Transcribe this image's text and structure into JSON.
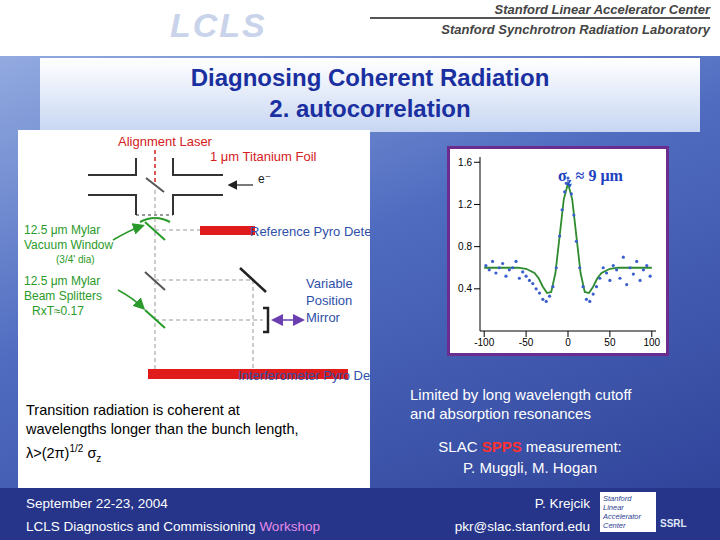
{
  "header": {
    "logo": "LCLS",
    "lines": [
      "Stanford Linear Accelerator Center",
      "Stanford Synchrotron Radiation Laboratory"
    ]
  },
  "title": [
    "Diagnosing Coherent Radiation",
    "2. autocorrelation"
  ],
  "diagram": {
    "labels": [
      "Alignment Laser",
      "1 μm Titanium Foil",
      "e⁻",
      "12.5 μm Mylar",
      "Vacuum Window",
      "(3/4' dia)",
      "Reference Pyro Detector",
      "12.5 μm Mylar",
      "Beam Splitters",
      "RxT≈0.17",
      "Variable",
      "Position",
      "Mirror",
      "Interferometer Pyro Detector"
    ]
  },
  "chart_data": {
    "type": "scatter",
    "annotation": {
      "symbol": "σ",
      "subscript": "z",
      "text": " ≈ 9 μm"
    },
    "xlim": [
      -105,
      105
    ],
    "xticks": [
      -100,
      -50,
      0,
      50,
      100
    ],
    "ylim": [
      0,
      1.65
    ],
    "yticks": [
      0.4,
      0.8,
      1.2,
      1.6
    ],
    "grid": false,
    "series": [
      {
        "type": "scatter",
        "color": "#3a5fcd",
        "marker": "circle",
        "x": [
          -98,
          -94,
          -90,
          -86,
          -82,
          -78,
          -74,
          -70,
          -66,
          -62,
          -58,
          -54,
          -50,
          -46,
          -42,
          -38,
          -34,
          -30,
          -26,
          -22,
          -18,
          -14,
          -10,
          -7,
          -4,
          -2,
          0,
          2,
          4,
          7,
          10,
          14,
          18,
          22,
          26,
          30,
          34,
          38,
          42,
          46,
          50,
          54,
          58,
          62,
          66,
          70,
          74,
          78,
          82,
          86,
          90,
          94,
          98
        ],
        "values": [
          0.62,
          0.58,
          0.66,
          0.55,
          0.6,
          0.64,
          0.52,
          0.58,
          0.6,
          0.66,
          0.5,
          0.56,
          0.52,
          0.48,
          0.45,
          0.4,
          0.36,
          0.3,
          0.28,
          0.33,
          0.42,
          0.6,
          0.9,
          1.15,
          1.32,
          1.4,
          1.45,
          1.38,
          1.3,
          1.1,
          0.85,
          0.6,
          0.42,
          0.3,
          0.28,
          0.35,
          0.42,
          0.5,
          0.6,
          0.55,
          0.48,
          0.62,
          0.58,
          0.5,
          0.7,
          0.44,
          0.6,
          0.54,
          0.66,
          0.48,
          0.58,
          0.62,
          0.52
        ]
      },
      {
        "type": "line",
        "color": "#2e8b2e",
        "line_style": "solid",
        "x": [
          -100,
          -90,
          -80,
          -70,
          -60,
          -50,
          -40,
          -35,
          -30,
          -25,
          -20,
          -15,
          -10,
          -5,
          0,
          5,
          10,
          15,
          20,
          25,
          30,
          35,
          40,
          50,
          60,
          70,
          80,
          90,
          100
        ],
        "values": [
          0.6,
          0.6,
          0.6,
          0.6,
          0.6,
          0.59,
          0.55,
          0.5,
          0.42,
          0.36,
          0.37,
          0.55,
          0.9,
          1.25,
          1.4,
          1.25,
          0.9,
          0.55,
          0.37,
          0.36,
          0.42,
          0.5,
          0.55,
          0.59,
          0.6,
          0.6,
          0.6,
          0.6,
          0.6
        ]
      }
    ]
  },
  "left_text": {
    "lines": [
      "Transition radiation is coherent at",
      "wavelengths longer than the bunch length,"
    ],
    "formula": {
      "main": "λ>(2π)",
      "superscript": "1/2",
      "symbol": " σ",
      "subscript": "z"
    }
  },
  "right_text": {
    "lines": [
      "Limited by long wavelength cutoff",
      "and absorption resonances"
    ],
    "measurement": [
      "SLAC ",
      "SPPS",
      " measurement:"
    ],
    "authors": "P. Muggli, M. Hogan"
  },
  "footer": {
    "date": "September 22-23, 2004",
    "workshop": [
      "LCLS Diagnostics and Commissioning",
      "Workshop"
    ],
    "author": "P. Krejcik",
    "email": "pkr@slac.stanford.edu",
    "logo": [
      "Stanford",
      "Linear",
      "Accelerator",
      "Center"
    ],
    "logo2": "SSRL"
  }
}
